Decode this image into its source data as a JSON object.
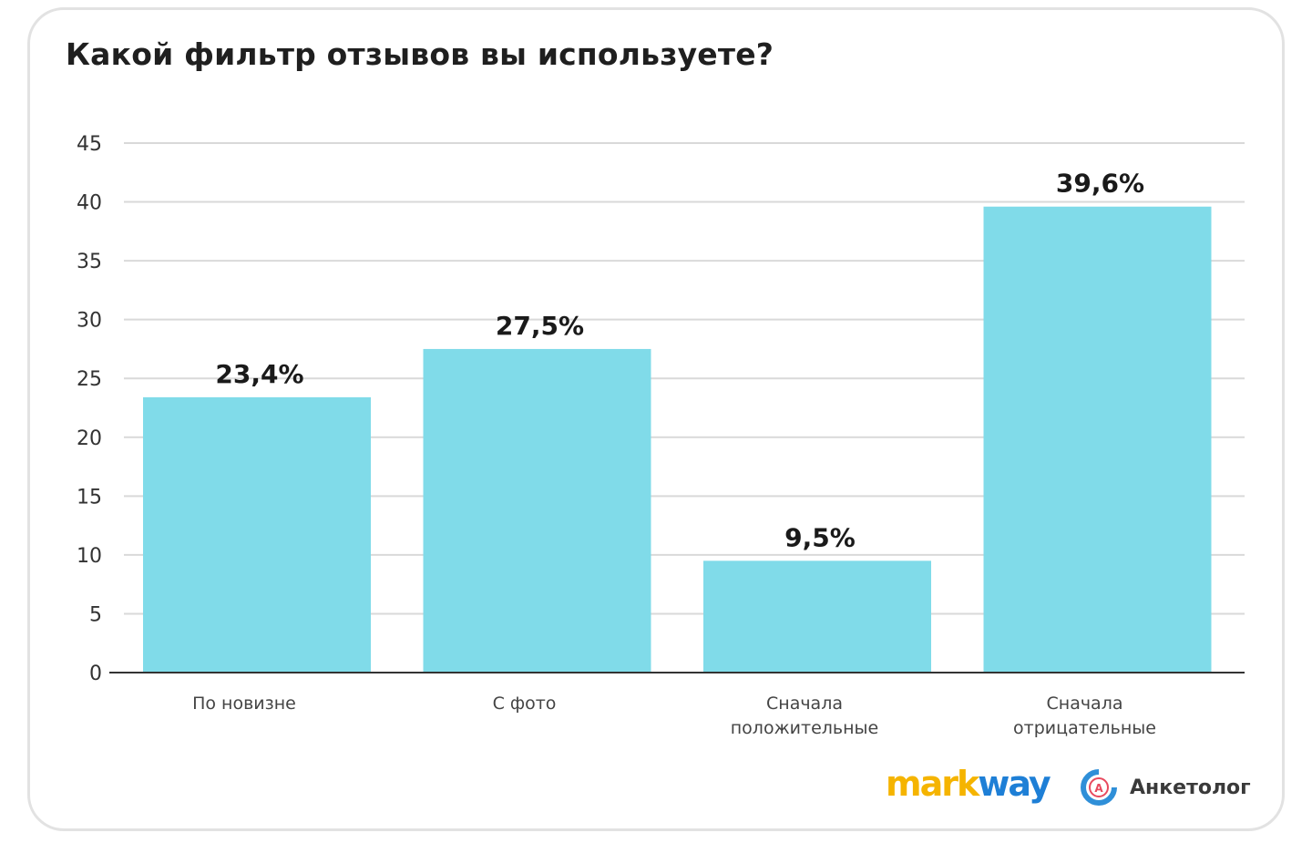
{
  "chart_data": {
    "type": "bar",
    "title": "Какой фильтр отзывов вы используете?",
    "categories": [
      [
        "По новизне"
      ],
      [
        "С фото"
      ],
      [
        "Сначала",
        "положительные"
      ],
      [
        "Сначала",
        "отрицательные"
      ]
    ],
    "values": [
      23.4,
      27.5,
      9.5,
      39.6
    ],
    "data_labels": [
      "23,4%",
      "27,5%",
      "9,5%",
      "39,6%"
    ],
    "ylim": [
      0,
      45
    ],
    "yticks": [
      0,
      5,
      10,
      15,
      20,
      25,
      30,
      35,
      40,
      45
    ],
    "grid": true,
    "bar_color": "#80dbe9",
    "xlabel": "",
    "ylabel": ""
  },
  "logos": {
    "markway_part1": "mark",
    "markway_part2": "way",
    "anketolog": "Анкетолог",
    "anketolog_icon_letter": "А"
  }
}
